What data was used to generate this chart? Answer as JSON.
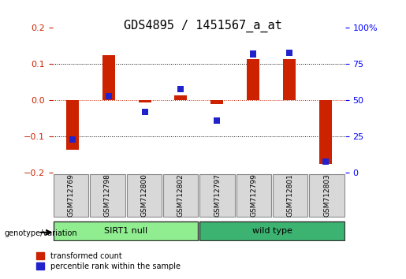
{
  "title": "GDS4895 / 1451567_a_at",
  "samples": [
    "GSM712769",
    "GSM712798",
    "GSM712800",
    "GSM712802",
    "GSM712797",
    "GSM712799",
    "GSM712801",
    "GSM712803"
  ],
  "red_values": [
    -0.135,
    0.125,
    -0.005,
    0.015,
    -0.01,
    0.115,
    0.115,
    -0.175
  ],
  "blue_values_raw": [
    23,
    53,
    42,
    58,
    36,
    82,
    83,
    8
  ],
  "groups": [
    {
      "label": "SIRT1 null",
      "start": 0,
      "end": 4,
      "color": "#90EE90"
    },
    {
      "label": "wild type",
      "start": 4,
      "end": 8,
      "color": "#3CB371"
    }
  ],
  "ylim": [
    -0.2,
    0.2
  ],
  "y2lim": [
    0,
    100
  ],
  "yticks": [
    -0.2,
    -0.1,
    0,
    0.1,
    0.2
  ],
  "y2ticks": [
    0,
    25,
    50,
    75,
    100
  ],
  "red_color": "#CC2200",
  "blue_color": "#2222CC",
  "red_label": "transformed count",
  "blue_label": "percentile rank within the sample",
  "bar_width": 0.35,
  "dotted_line_color": "black",
  "zero_line_color": "#CC2200",
  "bg_color": "white",
  "plot_bg_color": "white",
  "group_label": "genotype/variation"
}
